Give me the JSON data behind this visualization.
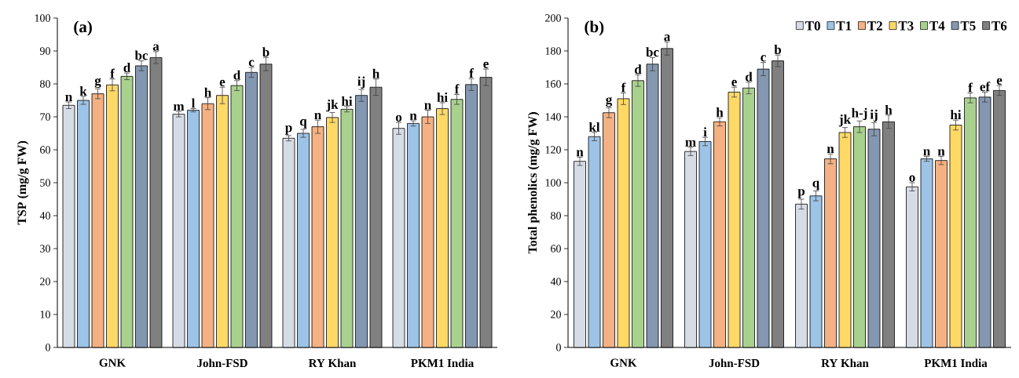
{
  "chart_data": [
    {
      "type": "bar",
      "ylabel": "TSP (mg/g FW)",
      "annotations": [
        "(a)"
      ],
      "categories": [
        "GNK",
        "John-FSD",
        "RY Khan",
        "PKM1 India"
      ],
      "ylim": [
        0,
        100
      ],
      "yticks": [
        0,
        10,
        20,
        30,
        40,
        50,
        60,
        70,
        80,
        90,
        100
      ],
      "legend": false,
      "series": [
        {
          "color": "#d6dce5",
          "values": [
            73.5,
            70.8,
            63.5,
            66.5
          ],
          "errors": [
            1.0,
            0.8,
            0.8,
            1.8
          ],
          "value_labels": [
            "n",
            "m",
            "p",
            "o"
          ]
        },
        {
          "color": "#9dc3e6",
          "values": [
            75,
            72,
            65,
            68
          ],
          "errors": [
            1.2,
            0.5,
            1.2,
            0.8
          ],
          "value_labels": [
            "k",
            "l",
            "q",
            "n"
          ]
        },
        {
          "color": "#f4b183",
          "values": [
            77,
            74,
            67,
            70
          ],
          "errors": [
            1.5,
            1.8,
            2.0,
            2.0
          ],
          "value_labels": [
            "g",
            "h",
            "n",
            "n"
          ]
        },
        {
          "color": "#ffd966",
          "values": [
            79.7,
            76.5,
            69.8,
            72.5
          ],
          "errors": [
            1.8,
            2.5,
            1.5,
            1.8
          ],
          "value_labels": [
            "f",
            "e",
            "jk",
            "hi"
          ]
        },
        {
          "color": "#a9d18e",
          "values": [
            82.3,
            79.5,
            72.3,
            75.3
          ],
          "errors": [
            1.0,
            1.5,
            0.8,
            1.5
          ],
          "value_labels": [
            "d",
            "d",
            "hi",
            "f"
          ]
        },
        {
          "color": "#8497b0",
          "values": [
            85.5,
            83.5,
            76.5,
            79.8
          ],
          "errors": [
            1.5,
            1.5,
            1.8,
            1.8
          ],
          "value_labels": [
            "bc",
            "c",
            "ij",
            "f"
          ]
        },
        {
          "color": "#808080",
          "values": [
            88,
            86,
            79,
            82
          ],
          "errors": [
            1.8,
            2.0,
            2.5,
            2.5
          ],
          "value_labels": [
            "a",
            "b",
            "h",
            "e"
          ]
        }
      ]
    },
    {
      "type": "bar",
      "ylabel": "Total phenolics (mg/g FW)",
      "annotations": [
        "(b)"
      ],
      "categories": [
        "GNK",
        "John-FSD",
        "RY Khan",
        "PKM1 India"
      ],
      "ylim": [
        0,
        200
      ],
      "yticks": [
        0,
        20,
        40,
        60,
        80,
        100,
        120,
        140,
        160,
        180,
        200
      ],
      "legend": "top right",
      "series": [
        {
          "name": "T0",
          "color": "#d6dce5",
          "values": [
            113,
            119,
            87,
            97.5
          ],
          "errors": [
            2.5,
            2.5,
            3,
            2.5
          ],
          "value_labels": [
            "n",
            "m",
            "p",
            "o"
          ]
        },
        {
          "name": "T1",
          "color": "#9dc3e6",
          "values": [
            128,
            125,
            92,
            114.5
          ],
          "errors": [
            2.5,
            2.5,
            3,
            1.5
          ],
          "value_labels": [
            "kl",
            "i",
            "q",
            "n"
          ]
        },
        {
          "name": "T2",
          "color": "#f4b183",
          "values": [
            142.5,
            137,
            114.5,
            113.5
          ],
          "errors": [
            3,
            2.5,
            3,
            2.5
          ],
          "value_labels": [
            "g",
            "h",
            "n",
            "n"
          ]
        },
        {
          "name": "T3",
          "color": "#ffd966",
          "values": [
            151,
            155,
            130.5,
            135
          ],
          "errors": [
            3.5,
            3,
            3,
            3
          ],
          "value_labels": [
            "f",
            "e",
            "jk",
            "hi"
          ]
        },
        {
          "name": "T4",
          "color": "#a9d18e",
          "values": [
            162,
            157.5,
            134,
            151.5
          ],
          "errors": [
            3.5,
            3.5,
            3.5,
            3
          ],
          "value_labels": [
            "d",
            "d",
            "h-j",
            "f"
          ]
        },
        {
          "name": "T5",
          "color": "#8497b0",
          "values": [
            172,
            169,
            132.5,
            152
          ],
          "errors": [
            4,
            4,
            4,
            3
          ],
          "value_labels": [
            "bc",
            "c",
            "ij",
            "ef"
          ]
        },
        {
          "name": "T6",
          "color": "#808080",
          "values": [
            181.5,
            174,
            137,
            156
          ],
          "errors": [
            4,
            3.5,
            4,
            3
          ],
          "value_labels": [
            "a",
            "b",
            "h",
            "e"
          ]
        }
      ]
    }
  ]
}
